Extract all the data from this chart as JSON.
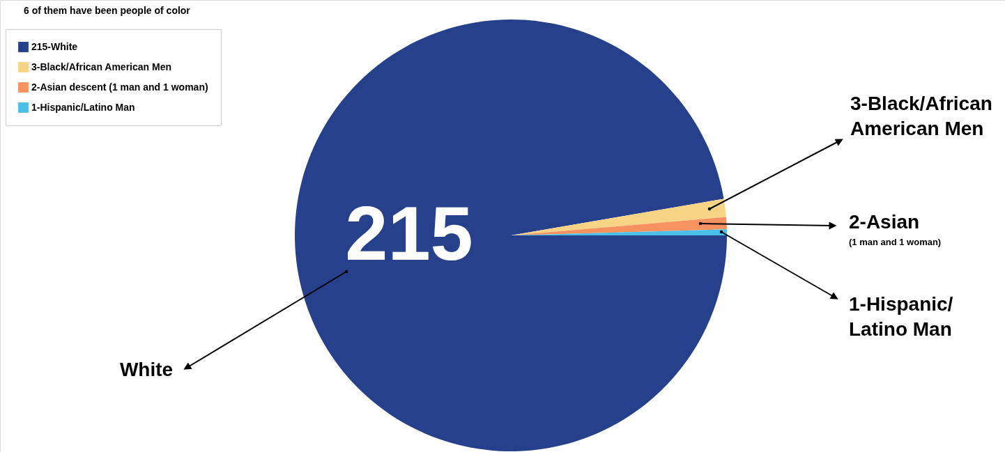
{
  "chart_data": {
    "type": "pie",
    "categories": [
      "215-White",
      "3-Black/African American Men",
      "2-Asian descent (1 man and 1 woman)",
      "1-Hispanic/Latino Man"
    ],
    "values": [
      215,
      3,
      2,
      1
    ],
    "colors": [
      "#26408c",
      "#f7d386",
      "#f59260",
      "#4bbfe8"
    ],
    "value_labels": [
      "215",
      null,
      null,
      null
    ],
    "legend_title": "6 of them have been people of color",
    "legend": "top left",
    "annotations": [
      "White",
      "3-Black/African American Men",
      "2-Asian",
      "(1 man and 1 woman)",
      "1-Hispanic/ Latino Man"
    ]
  }
}
